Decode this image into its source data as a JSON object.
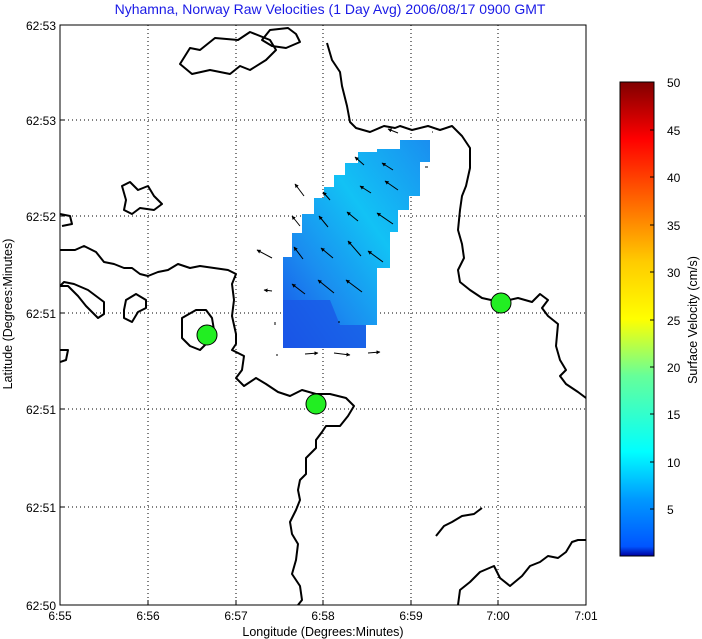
{
  "title": "Nyhamna, Norway Raw Velocities (1 Day Avg) 2006/08/17 0900 GMT",
  "map": {
    "xlabel": "Longitude (Degrees:Minutes)",
    "ylabel": "Latitude (Degrees:Minutes)",
    "x_ticks": [
      "6:55",
      "6:56",
      "6:57",
      "6:58",
      "6:59",
      "7:00",
      "7:01"
    ],
    "y_ticks": [
      "62:53",
      "62:53",
      "62:52",
      "62:51",
      "62:51",
      "62:51",
      "62:50"
    ],
    "grid": "dotted",
    "land_color": "#ffffff",
    "coast_color": "#000000",
    "site_color": "#22ee22",
    "sites": [
      {
        "name": "site-west",
        "lon": "6:56.7",
        "lat_tick_frac": 0.26
      },
      {
        "name": "site-south",
        "lon": "6:57.9",
        "lat_tick_frac": 0.75
      },
      {
        "name": "site-east",
        "lon": "7:00.0",
        "lat_tick_frac": 0.0
      }
    ]
  },
  "colorbar": {
    "label": "Surface Velocity (cm/s)",
    "ticks": [
      "50",
      "45",
      "40",
      "35",
      "30",
      "25",
      "20",
      "15",
      "10",
      "5"
    ],
    "min": 0,
    "max": 50
  }
}
